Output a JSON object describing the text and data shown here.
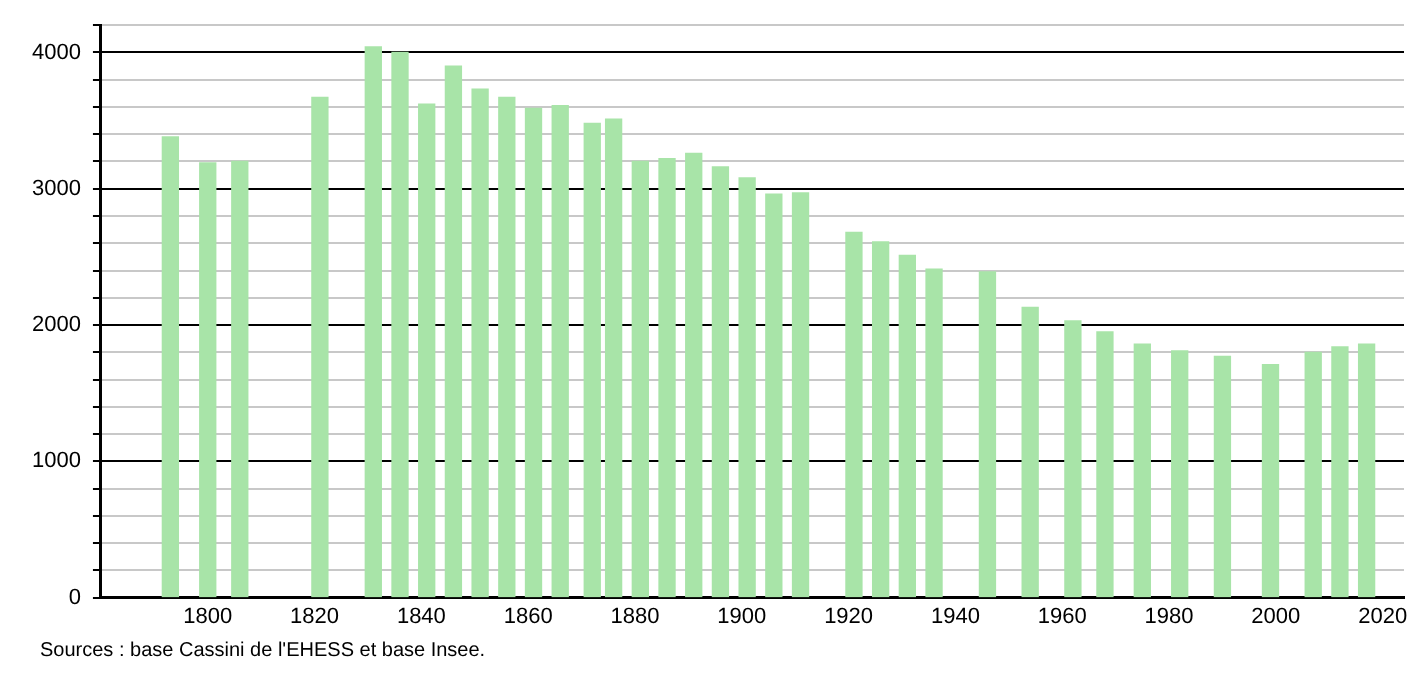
{
  "chart_data": {
    "type": "bar",
    "x": [
      1793,
      1800,
      1806,
      1821,
      1831,
      1836,
      1841,
      1846,
      1851,
      1856,
      1861,
      1866,
      1872,
      1876,
      1881,
      1886,
      1891,
      1896,
      1901,
      1906,
      1911,
      1921,
      1926,
      1931,
      1936,
      1946,
      1954,
      1962,
      1968,
      1975,
      1982,
      1990,
      1999,
      2007,
      2012,
      2017
    ],
    "values": [
      3380,
      3190,
      3200,
      3670,
      4040,
      4000,
      3620,
      3900,
      3730,
      3670,
      3590,
      3610,
      3480,
      3510,
      3200,
      3220,
      3260,
      3160,
      3080,
      2960,
      2970,
      2680,
      2610,
      2510,
      2410,
      2390,
      2130,
      2030,
      1950,
      1860,
      1810,
      1770,
      1710,
      1800,
      1840,
      1860
    ],
    "color": "#a8e4a8",
    "xlim": [
      1780,
      2024
    ],
    "xticks": [
      1800,
      1820,
      1840,
      1860,
      1880,
      1900,
      1920,
      1940,
      1960,
      1980,
      2000,
      2020
    ],
    "ylim": [
      0,
      4200
    ],
    "yticks": [
      0,
      {
        "value": 200,
        "label": null
      },
      {
        "value": 400,
        "label": null
      },
      {
        "value": 600,
        "label": null
      },
      {
        "value": 800,
        "label": null
      },
      1000,
      {
        "value": 1200,
        "label": null
      },
      {
        "value": 1400,
        "label": null
      },
      {
        "value": 1600,
        "label": null
      },
      {
        "value": 1800,
        "label": null
      },
      2000,
      {
        "value": 2200,
        "label": null
      },
      {
        "value": 2400,
        "label": null
      },
      {
        "value": 2600,
        "label": null
      },
      {
        "value": 2800,
        "label": null
      },
      3000,
      {
        "value": 3200,
        "label": null
      },
      {
        "value": 3400,
        "label": null
      },
      {
        "value": 3600,
        "label": null
      },
      {
        "value": 3800,
        "label": null
      },
      4000,
      {
        "value": 4200,
        "label": null
      }
    ],
    "grid": "y",
    "legend": false,
    "annotations": [
      "Sources : base Cassini de l'EHESS et base Insee."
    ]
  }
}
